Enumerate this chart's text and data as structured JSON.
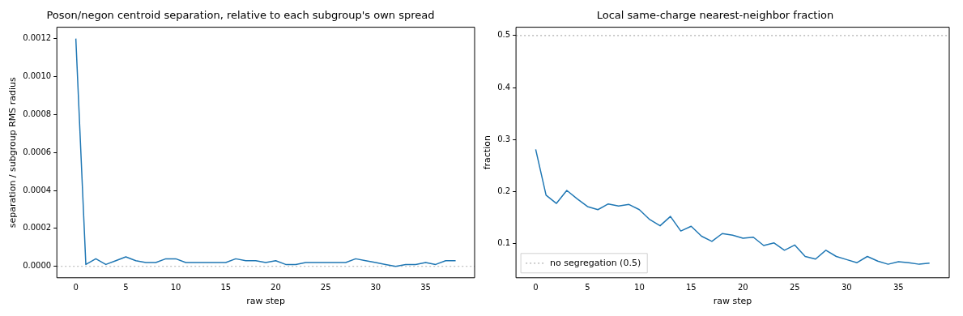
{
  "chart_data": [
    {
      "type": "line",
      "title": "Poson/negon centroid separation, relative to each subgroup's own spread",
      "xlabel": "raw step",
      "ylabel": "separation / subgroup RMS radius",
      "x": [
        0,
        1,
        2,
        3,
        4,
        5,
        6,
        7,
        8,
        9,
        10,
        11,
        12,
        13,
        14,
        15,
        16,
        17,
        18,
        19,
        20,
        21,
        22,
        23,
        24,
        25,
        26,
        27,
        28,
        29,
        30,
        31,
        32,
        33,
        34,
        35,
        36,
        37,
        38
      ],
      "values": [
        0.0012,
        1e-05,
        4e-05,
        1e-05,
        3e-05,
        5e-05,
        3e-05,
        2e-05,
        2e-05,
        4e-05,
        4e-05,
        2e-05,
        2e-05,
        2e-05,
        2e-05,
        2e-05,
        4e-05,
        3e-05,
        3e-05,
        2e-05,
        3e-05,
        1e-05,
        1e-05,
        2e-05,
        2e-05,
        2e-05,
        2e-05,
        2e-05,
        4e-05,
        3e-05,
        2e-05,
        1e-05,
        0.0,
        1e-05,
        1e-05,
        2e-05,
        1e-05,
        3e-05,
        3e-05
      ],
      "color": "#1f77b4",
      "xlim": [
        -1.9,
        39.9
      ],
      "ylim": [
        -6e-05,
        0.00126
      ],
      "xticks": [
        0,
        5,
        10,
        15,
        20,
        25,
        30,
        35
      ],
      "yticks": [
        {
          "value": 0,
          "label": "0.0000"
        },
        {
          "value": 0.0002,
          "label": "0.0002"
        },
        {
          "value": 0.0004,
          "label": "0.0004"
        },
        {
          "value": 0.0006,
          "label": "0.0006"
        },
        {
          "value": 0.0008,
          "label": "0.0008"
        },
        {
          "value": 0.001,
          "label": "0.0010"
        },
        {
          "value": 0.0012,
          "label": "0.0012"
        }
      ],
      "ref_lines": [
        {
          "axis": "y",
          "value": 0,
          "color": "#b0b0b0",
          "line_style": "dotted"
        }
      ],
      "grid": false,
      "legend": false
    },
    {
      "type": "line",
      "title": "Local same-charge nearest-neighbor fraction",
      "xlabel": "raw step",
      "ylabel": "fraction",
      "x": [
        0,
        1,
        2,
        3,
        4,
        5,
        6,
        7,
        8,
        9,
        10,
        11,
        12,
        13,
        14,
        15,
        16,
        17,
        18,
        19,
        20,
        21,
        22,
        23,
        24,
        25,
        26,
        27,
        28,
        29,
        30,
        31,
        32,
        33,
        34,
        35,
        36,
        37,
        38
      ],
      "values": [
        0.281,
        0.193,
        0.177,
        0.202,
        0.186,
        0.171,
        0.165,
        0.176,
        0.172,
        0.175,
        0.165,
        0.146,
        0.134,
        0.152,
        0.124,
        0.133,
        0.114,
        0.104,
        0.119,
        0.116,
        0.11,
        0.112,
        0.096,
        0.101,
        0.087,
        0.097,
        0.075,
        0.07,
        0.087,
        0.075,
        0.069,
        0.063,
        0.075,
        0.066,
        0.06,
        0.065,
        0.063,
        0.06,
        0.062
      ],
      "color": "#1f77b4",
      "xlim": [
        -1.9,
        39.9
      ],
      "ylim": [
        0.034,
        0.516
      ],
      "xticks": [
        0,
        5,
        10,
        15,
        20,
        25,
        30,
        35
      ],
      "yticks": [
        0.1,
        0.2,
        0.3,
        0.4,
        0.5
      ],
      "ref_lines": [
        {
          "axis": "y",
          "value": 0.5,
          "label": "no segregation (0.5)",
          "color": "#b0b0b0",
          "line_style": "dotted"
        }
      ],
      "grid": false,
      "legend": "bottom left"
    }
  ]
}
